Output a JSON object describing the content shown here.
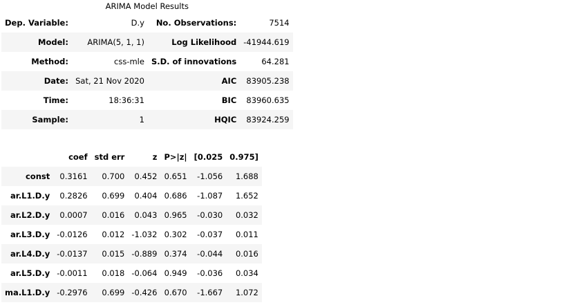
{
  "caption": "ARIMA Model Results",
  "summary_rows": [
    [
      "Dep. Variable:",
      "D.y",
      "No. Observations:",
      "7514"
    ],
    [
      "Model:",
      "ARIMA(5, 1, 1)",
      "Log Likelihood",
      "-41944.619"
    ],
    [
      "Method:",
      "css-mle",
      "S.D. of innovations",
      "64.281"
    ],
    [
      "Date:",
      "Sat, 21 Nov 2020",
      "AIC",
      "83905.238"
    ],
    [
      "Time:",
      "18:36:31",
      "BIC",
      "83960.635"
    ],
    [
      "Sample:",
      "1",
      "HQIC",
      "83924.259"
    ]
  ],
  "coef_header": [
    "coef",
    "std err",
    "z",
    "P>|z|",
    "[0.025",
    "0.975]"
  ],
  "coef_rows": [
    [
      "const",
      "0.3161",
      "0.700",
      "0.452",
      "0.651",
      "-1.056",
      "1.688"
    ],
    [
      "ar.L1.D.y",
      "0.2826",
      "0.699",
      "0.404",
      "0.686",
      "-1.087",
      "1.652"
    ],
    [
      "ar.L2.D.y",
      "0.0007",
      "0.016",
      "0.043",
      "0.965",
      "-0.030",
      "0.032"
    ],
    [
      "ar.L3.D.y",
      "-0.0126",
      "0.012",
      "-1.032",
      "0.302",
      "-0.037",
      "0.011"
    ],
    [
      "ar.L4.D.y",
      "-0.0137",
      "0.015",
      "-0.889",
      "0.374",
      "-0.044",
      "0.016"
    ],
    [
      "ar.L5.D.y",
      "-0.0011",
      "0.018",
      "-0.064",
      "0.949",
      "-0.036",
      "0.034"
    ],
    [
      "ma.L1.D.y",
      "-0.2976",
      "0.699",
      "-0.426",
      "0.670",
      "-1.667",
      "1.072"
    ]
  ]
}
